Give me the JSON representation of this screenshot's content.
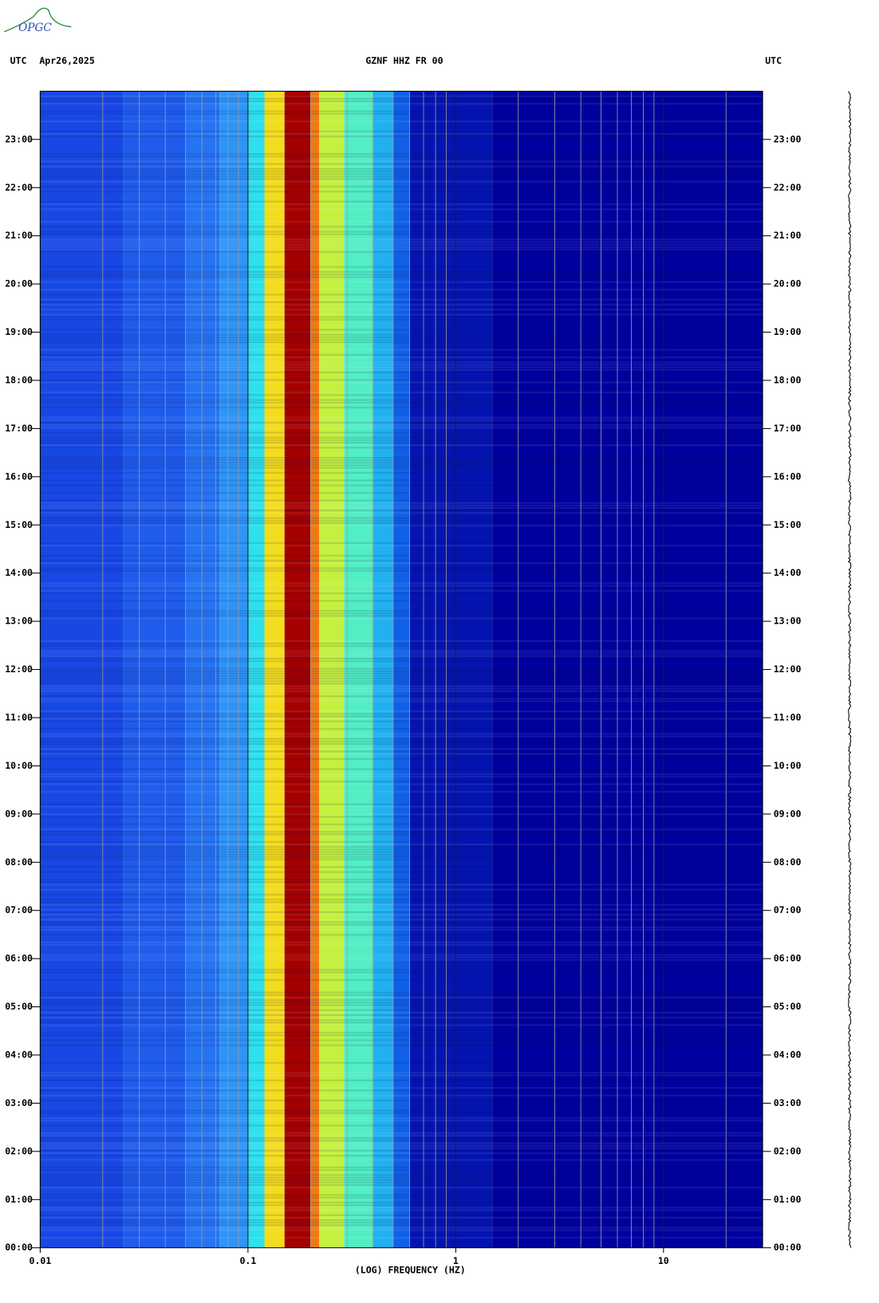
{
  "chart_data": {
    "type": "spectrogram",
    "logo": "OPGC",
    "left_header": "UTC",
    "date": "Apr26,2025",
    "title": "GZNF HHZ FR 00",
    "right_header": "UTC",
    "xlabel": "(LOG) FREQUENCY (HZ)",
    "xscale": "log",
    "xlim": [
      0.01,
      30
    ],
    "xticks": [
      0.01,
      0.1,
      1,
      10
    ],
    "xgrid_minor": [
      0.02,
      0.03,
      0.04,
      0.05,
      0.06,
      0.07,
      0.08,
      0.09,
      0.2,
      0.3,
      0.4,
      0.5,
      0.6,
      0.7,
      0.8,
      0.9,
      2,
      3,
      4,
      5,
      6,
      7,
      8,
      9,
      20
    ],
    "ylim": [
      0,
      24
    ],
    "yticks": [
      {
        "value": 0,
        "label": "00:00"
      },
      {
        "value": 1,
        "label": "01:00"
      },
      {
        "value": 2,
        "label": "02:00"
      },
      {
        "value": 3,
        "label": "03:00"
      },
      {
        "value": 4,
        "label": "04:00"
      },
      {
        "value": 5,
        "label": "05:00"
      },
      {
        "value": 6,
        "label": "06:00"
      },
      {
        "value": 7,
        "label": "07:00"
      },
      {
        "value": 8,
        "label": "08:00"
      },
      {
        "value": 9,
        "label": "09:00"
      },
      {
        "value": 10,
        "label": "10:00"
      },
      {
        "value": 11,
        "label": "11:00"
      },
      {
        "value": 12,
        "label": "12:00"
      },
      {
        "value": 13,
        "label": "13:00"
      },
      {
        "value": 14,
        "label": "14:00"
      },
      {
        "value": 15,
        "label": "15:00"
      },
      {
        "value": 16,
        "label": "16:00"
      },
      {
        "value": 17,
        "label": "17:00"
      },
      {
        "value": 18,
        "label": "18:00"
      },
      {
        "value": 19,
        "label": "19:00"
      },
      {
        "value": 20,
        "label": "20:00"
      },
      {
        "value": 21,
        "label": "21:00"
      },
      {
        "value": 22,
        "label": "22:00"
      },
      {
        "value": 23,
        "label": "23:00"
      }
    ],
    "bin_edges": [
      0.01,
      0.025,
      0.05,
      0.073,
      0.1,
      0.12,
      0.15,
      0.2,
      0.22,
      0.29,
      0.4,
      0.5,
      0.6,
      1.5,
      30
    ],
    "bin_colors": [
      "#1848e4",
      "#1f5cec",
      "#2674f2",
      "#2f94f6",
      "#2ee0ee",
      "#f2dc1e",
      "#a40000",
      "#f07a12",
      "#c4f040",
      "#52eec4",
      "#22b0f2",
      "#1060e6",
      "#0414b0",
      "#00009e"
    ]
  }
}
